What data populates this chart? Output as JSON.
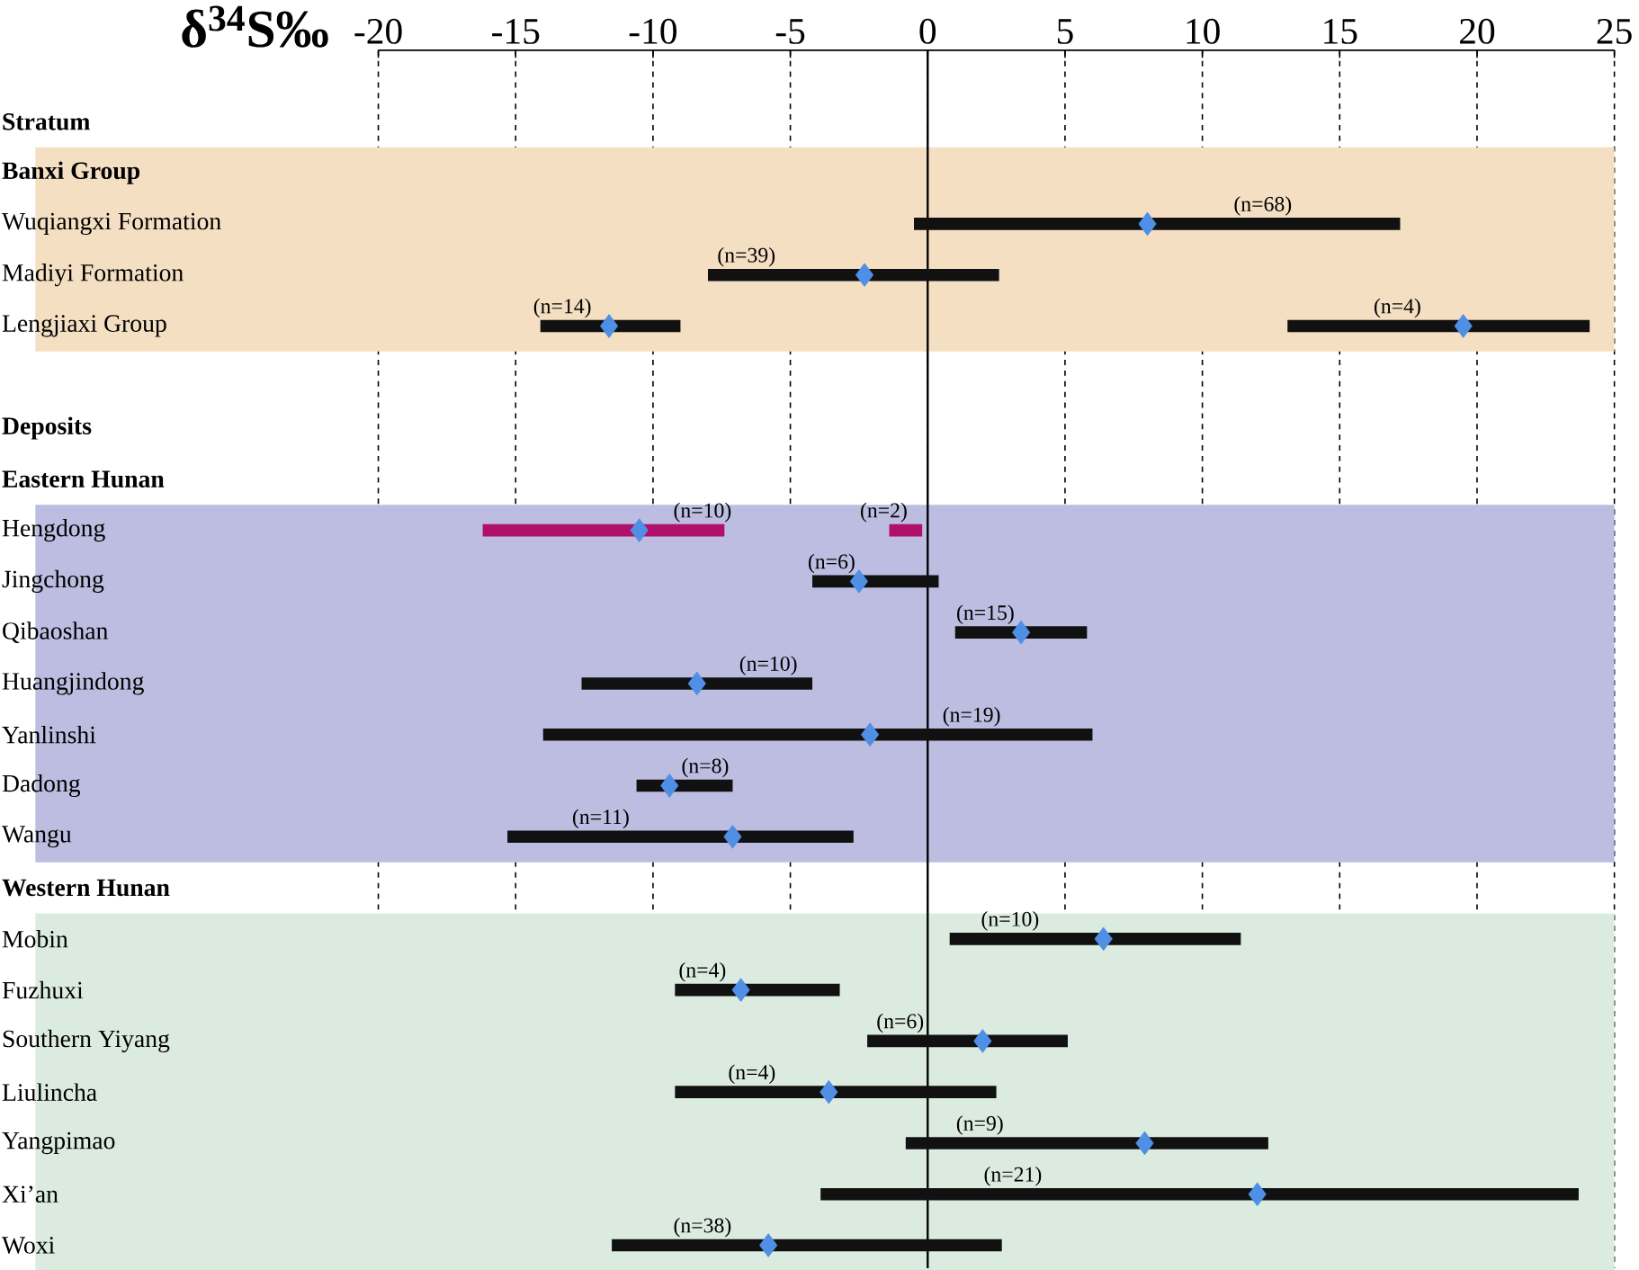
{
  "chart_data": {
    "type": "bar",
    "orientation": "horizontal",
    "xlabel": "δ$^{34}$S‰",
    "categories": [
      "Stratum",
      "Banxi Group",
      "Wuqiangxi Formation",
      "Madiyi Formation",
      "Lengjiaxi Group",
      null,
      "Deposits",
      "Eastern Hunan",
      "Hengdong",
      "Jingchong",
      "Qibaoshan",
      "Huangjindong",
      "Yanlinshi",
      "Dadong",
      "Wangu",
      "Western Hunan",
      "Mobin",
      "Fuzhuxi",
      "Southern Yiyang",
      "Liulincha",
      "Yangpimao",
      "Xi’an",
      "Woxi"
    ],
    "xlim": [
      -20,
      25
    ],
    "xticks": [
      -20,
      -15,
      -10,
      -5,
      0,
      5,
      10,
      15,
      20,
      25
    ],
    "grid": "x",
    "ref_lines": [
      {
        "axis": "x",
        "value": 0
      }
    ],
    "annotations": [
      {
        "text": "(n=68)",
        "x": 12.2,
        "y": "Wuqiangxi Formation"
      },
      {
        "text": "(n=39)",
        "x": -6.6,
        "y": "Madiyi Formation"
      },
      {
        "text": "(n=14)",
        "x": -13.3,
        "y": "Lengjiaxi Group"
      },
      {
        "text": "(n=4)",
        "x": 17.1,
        "y": "Lengjiaxi Group"
      },
      {
        "text": "(n=10)",
        "x": -8.2,
        "y": "Hengdong"
      },
      {
        "text": "(n=2)",
        "x": -1.6,
        "y": "Hengdong"
      },
      {
        "text": "(n=6)",
        "x": -3.5,
        "y": "Jingchong"
      },
      {
        "text": "(n=15)",
        "x": 2.1,
        "y": "Qibaoshan"
      },
      {
        "text": "(n=10)",
        "x": -5.8,
        "y": "Huangjindong"
      },
      {
        "text": "(n=19)",
        "x": 1.6,
        "y": "Yanlinshi"
      },
      {
        "text": "(n=8)",
        "x": -8.1,
        "y": "Dadong"
      },
      {
        "text": "(n=11)",
        "x": -11.9,
        "y": "Wangu"
      },
      {
        "text": "(n=10)",
        "x": 3.0,
        "y": "Mobin"
      },
      {
        "text": "(n=4)",
        "x": -8.2,
        "y": "Fuzhuxi"
      },
      {
        "text": "(n=6)",
        "x": -1.0,
        "y": "Southern Yiyang"
      },
      {
        "text": "(n=4)",
        "x": -6.4,
        "y": "Liulincha"
      },
      {
        "text": "(n=9)",
        "x": 1.9,
        "y": "Yangpimao"
      },
      {
        "text": "(n=21)",
        "x": 3.1,
        "y": "Xi’an"
      },
      {
        "text": "(n=38)",
        "x": -8.2,
        "y": "Woxi"
      }
    ],
    "bands": [
      {
        "axis": "y",
        "from": "Banxi Group",
        "to": "Lengjiaxi Group",
        "color": "#f5dfc3"
      },
      {
        "axis": "y",
        "from": "Hengdong",
        "to": "Wangu",
        "color": "#bcbde0"
      },
      {
        "axis": "y",
        "from": "Mobin",
        "to": "Woxi",
        "color": "#dcebe0"
      }
    ],
    "series": [
      {
        "base": [
          null,
          null,
          -0.5,
          -8.0,
          -14.1,
          null,
          null,
          null,
          -16.2,
          -4.2,
          1.0,
          -12.6,
          -14.0,
          -10.6,
          -15.3,
          null,
          0.8,
          -9.2,
          -2.2,
          -9.2,
          -0.8,
          -3.9,
          -11.5
        ],
        "values": [
          null,
          null,
          17.7,
          10.6,
          5.1,
          null,
          null,
          null,
          8.8,
          4.6,
          4.8,
          8.4,
          20.0,
          3.5,
          12.6,
          null,
          10.6,
          6.0,
          7.3,
          11.7,
          13.2,
          27.6,
          14.2
        ],
        "colors": [
          null,
          null,
          "#111111",
          "#111111",
          "#111111",
          null,
          null,
          null,
          "#b0106a",
          "#111111",
          "#111111",
          "#111111",
          "#111111",
          "#111111",
          "#111111",
          null,
          "#111111",
          "#111111",
          "#111111",
          "#111111",
          "#111111",
          "#111111",
          "#111111"
        ]
      },
      {
        "base": [
          null,
          null,
          null,
          null,
          13.1,
          null,
          null,
          null,
          -1.4,
          null,
          null,
          null,
          null,
          null,
          null,
          null,
          null,
          null,
          null,
          null,
          null,
          null,
          null
        ],
        "values": [
          null,
          null,
          null,
          null,
          11.0,
          null,
          null,
          null,
          1.2,
          null,
          null,
          null,
          null,
          null,
          null,
          null,
          null,
          null,
          null,
          null,
          null,
          null,
          null
        ],
        "colors": [
          null,
          null,
          null,
          null,
          "#111111",
          null,
          null,
          null,
          "#b0106a",
          null,
          null,
          null,
          null,
          null,
          null,
          null,
          null,
          null,
          null,
          null,
          null,
          null,
          null
        ]
      },
      {
        "type": "scatter",
        "marker": "diamond",
        "color": "#4f8fe6",
        "values": [
          null,
          null,
          8.0,
          -2.3,
          -11.6,
          null,
          null,
          null,
          -10.5,
          -2.5,
          3.4,
          -8.4,
          -2.1,
          -9.4,
          -7.1,
          null,
          6.4,
          -6.8,
          2.0,
          -3.6,
          7.9,
          12.0,
          -5.8
        ]
      },
      {
        "type": "scatter",
        "marker": "diamond",
        "color": "#4f8fe6",
        "values": [
          null,
          null,
          null,
          null,
          19.5,
          null,
          null,
          null,
          null,
          null,
          null,
          null,
          null,
          null,
          null,
          null,
          null,
          null,
          null,
          null,
          null,
          null,
          null
        ]
      }
    ]
  }
}
